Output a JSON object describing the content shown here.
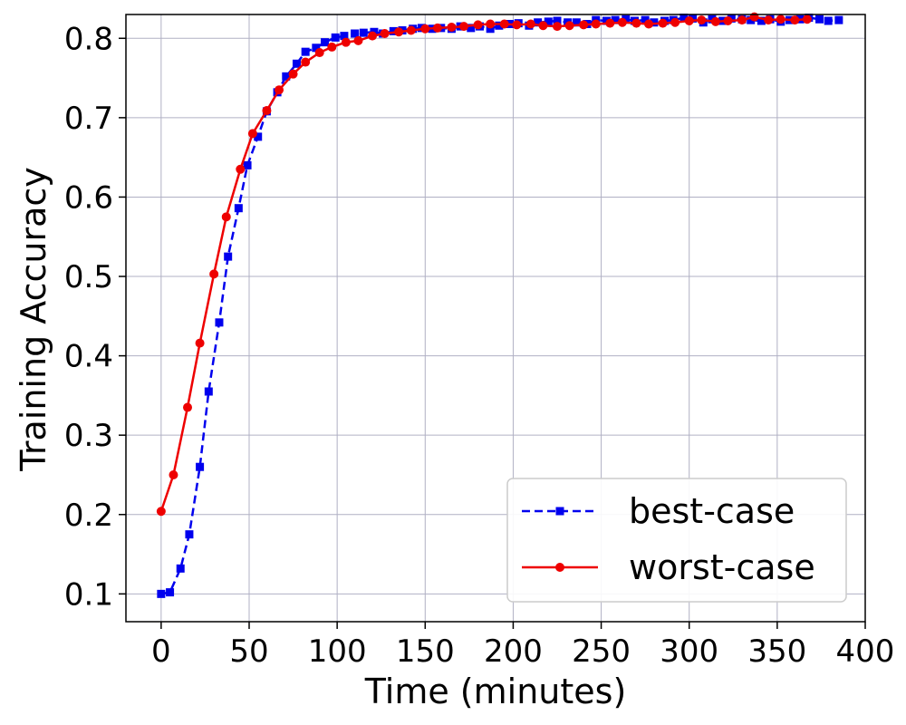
{
  "chart_data": {
    "type": "line",
    "xlabel": "Time (minutes)",
    "ylabel": "Training Accuracy",
    "xlim": [
      -20,
      400
    ],
    "ylim": [
      0.065,
      0.83
    ],
    "x_ticks": [
      0,
      50,
      100,
      150,
      200,
      250,
      300,
      350,
      400
    ],
    "y_ticks": [
      0.1,
      0.2,
      0.3,
      0.4,
      0.5,
      0.6,
      0.7,
      0.8
    ],
    "grid": true,
    "legend_position": "bottom-right",
    "series": [
      {
        "name": "best-case",
        "color": "#0000ee",
        "line_style": "dashed",
        "marker": "square",
        "x": [
          0,
          5,
          11,
          16,
          22,
          27,
          33,
          38,
          44,
          49,
          55,
          60,
          66,
          71,
          77,
          82,
          88,
          93,
          99,
          104,
          110,
          115,
          121,
          126,
          132,
          137,
          143,
          148,
          154,
          159,
          165,
          170,
          176,
          181,
          187,
          192,
          198,
          203,
          209,
          214,
          220,
          225,
          231,
          236,
          242,
          247,
          253,
          258,
          264,
          269,
          275,
          280,
          286,
          291,
          297,
          302,
          308,
          313,
          319,
          324,
          330,
          335,
          341,
          346,
          352,
          357,
          363,
          368,
          374,
          379,
          385
        ],
        "values": [
          0.1,
          0.102,
          0.132,
          0.175,
          0.26,
          0.355,
          0.442,
          0.525,
          0.586,
          0.64,
          0.676,
          0.708,
          0.732,
          0.752,
          0.768,
          0.783,
          0.788,
          0.795,
          0.801,
          0.803,
          0.806,
          0.807,
          0.808,
          0.806,
          0.809,
          0.81,
          0.812,
          0.813,
          0.812,
          0.813,
          0.812,
          0.815,
          0.813,
          0.815,
          0.812,
          0.816,
          0.818,
          0.819,
          0.816,
          0.82,
          0.821,
          0.822,
          0.82,
          0.82,
          0.818,
          0.823,
          0.822,
          0.823,
          0.824,
          0.822,
          0.823,
          0.82,
          0.822,
          0.823,
          0.826,
          0.825,
          0.82,
          0.824,
          0.822,
          0.825,
          0.824,
          0.823,
          0.822,
          0.824,
          0.821,
          0.823,
          0.824,
          0.826,
          0.824,
          0.822,
          0.823
        ]
      },
      {
        "name": "worst-case",
        "color": "#ee0000",
        "line_style": "solid",
        "marker": "circle",
        "x": [
          0,
          7,
          15,
          22,
          30,
          37,
          45,
          52,
          60,
          67,
          75,
          82,
          90,
          97,
          105,
          112,
          120,
          127,
          135,
          142,
          150,
          157,
          165,
          172,
          180,
          187,
          195,
          202,
          210,
          217,
          225,
          232,
          240,
          247,
          255,
          262,
          270,
          277,
          285,
          292,
          300,
          307,
          315,
          322,
          330,
          337,
          345,
          352,
          360,
          367
        ],
        "values": [
          0.204,
          0.25,
          0.335,
          0.416,
          0.503,
          0.575,
          0.635,
          0.68,
          0.709,
          0.735,
          0.755,
          0.77,
          0.782,
          0.789,
          0.795,
          0.797,
          0.803,
          0.806,
          0.808,
          0.81,
          0.812,
          0.813,
          0.814,
          0.815,
          0.817,
          0.818,
          0.818,
          0.817,
          0.818,
          0.816,
          0.815,
          0.816,
          0.817,
          0.818,
          0.819,
          0.82,
          0.819,
          0.818,
          0.819,
          0.82,
          0.822,
          0.823,
          0.821,
          0.822,
          0.823,
          0.827,
          0.823,
          0.824,
          0.823,
          0.824
        ]
      }
    ]
  }
}
